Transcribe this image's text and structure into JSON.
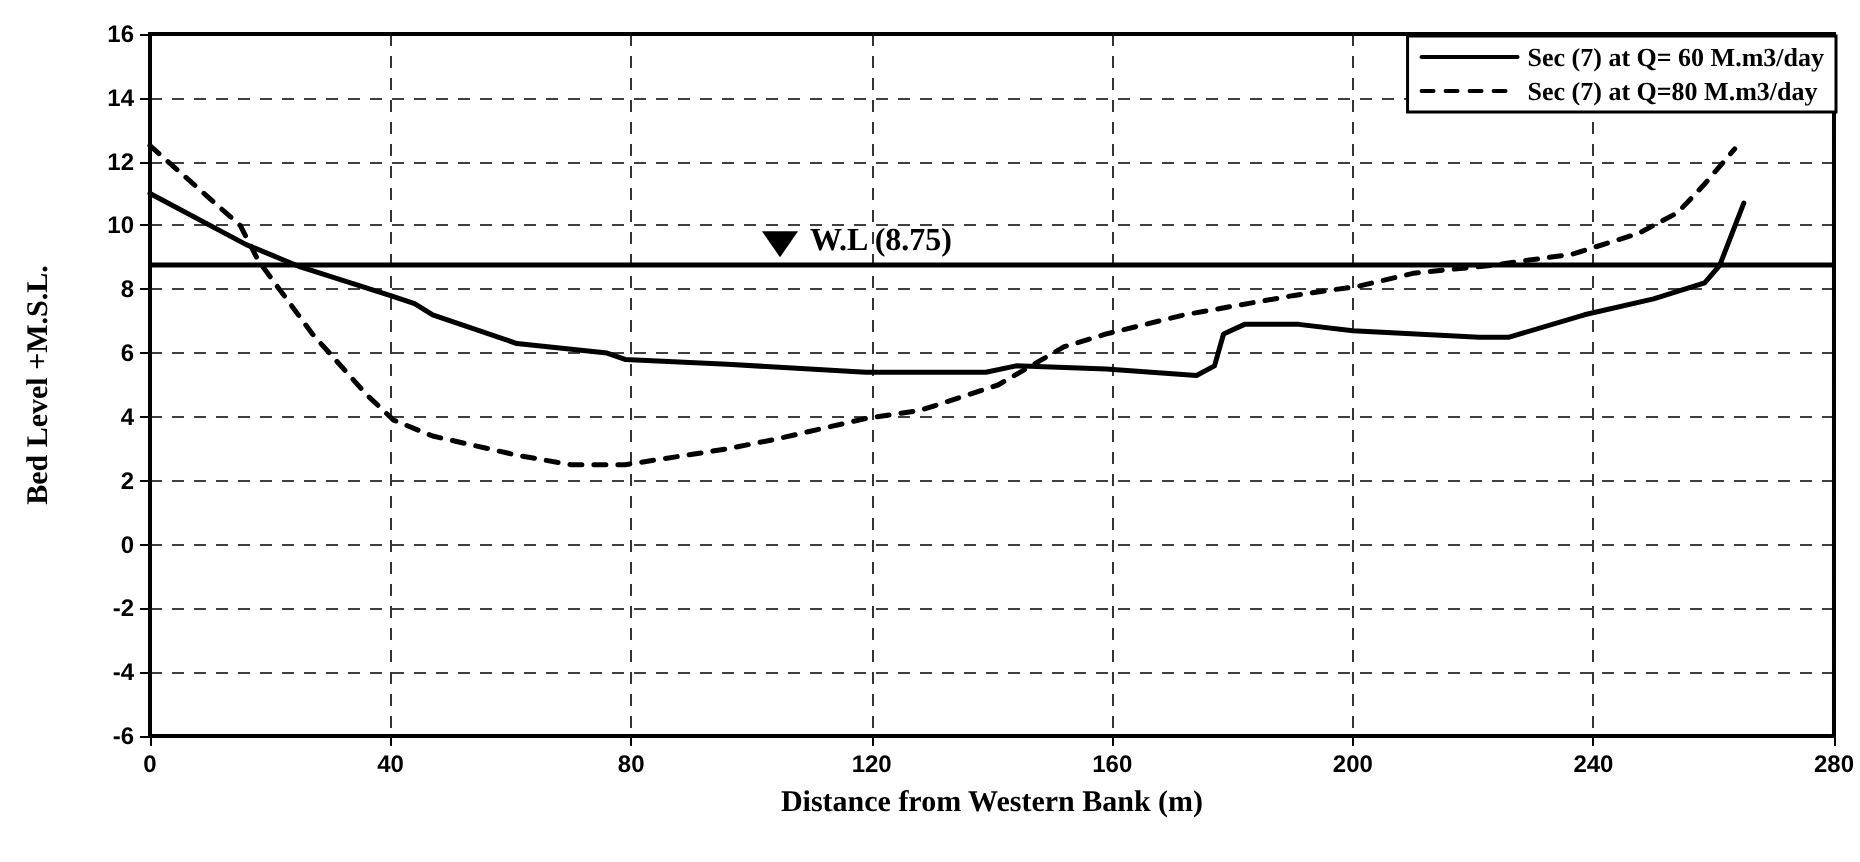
{
  "chart_data": {
    "type": "line",
    "xlabel": "Distance from Western Bank (m)",
    "ylabel": "Bed Level +M.S.L.",
    "xlim": [
      0,
      280
    ],
    "xticks": [
      0,
      40,
      80,
      120,
      160,
      200,
      240,
      280
    ],
    "ylim": [
      -6,
      16
    ],
    "yticks": [
      -6,
      -4,
      -2,
      0,
      2,
      4,
      6,
      8,
      10,
      12,
      14,
      16
    ],
    "grid": true,
    "legend": "top right",
    "marker": "none",
    "ref_lines": [
      {
        "axis": "y",
        "value": 8.75,
        "label": "W.L (8.75)",
        "color": "#000000",
        "line_style": "solid"
      }
    ],
    "series": [
      {
        "name": "Sec (7) at Q= 60 M.m3/day",
        "color": "#000000",
        "line_style": "solid",
        "x": [
          0,
          16,
          25,
          40,
          44,
          47,
          61,
          76,
          79,
          96,
          119,
          139,
          144,
          159,
          174,
          177,
          178.5,
          182,
          191,
          200,
          221,
          226,
          238.5,
          250,
          258.5,
          261,
          265
        ],
        "values": [
          11.0,
          9.4,
          8.7,
          7.8,
          7.55,
          7.2,
          6.3,
          6.0,
          5.8,
          5.65,
          5.4,
          5.4,
          5.6,
          5.5,
          5.3,
          5.6,
          6.6,
          6.9,
          6.9,
          6.7,
          6.5,
          6.5,
          7.2,
          7.7,
          8.2,
          8.75,
          10.7
        ]
      },
      {
        "name": "Sec (7) at Q=80 M.m3/day",
        "color": "#000000",
        "line_style": "dashed",
        "x": [
          0,
          15,
          18,
          27,
          36,
          40.5,
          47,
          61,
          70,
          79,
          96,
          104,
          119,
          128,
          134.5,
          141,
          152,
          159,
          172,
          190,
          201,
          210,
          223,
          236.5,
          247.5,
          254,
          258.5,
          263.5
        ],
        "values": [
          12.5,
          10.0,
          8.9,
          6.6,
          4.7,
          3.9,
          3.4,
          2.8,
          2.5,
          2.5,
          3.0,
          3.3,
          3.95,
          4.2,
          4.6,
          5.0,
          6.2,
          6.6,
          7.2,
          7.8,
          8.1,
          8.5,
          8.75,
          9.1,
          9.75,
          10.4,
          11.3,
          12.4
        ]
      }
    ]
  }
}
